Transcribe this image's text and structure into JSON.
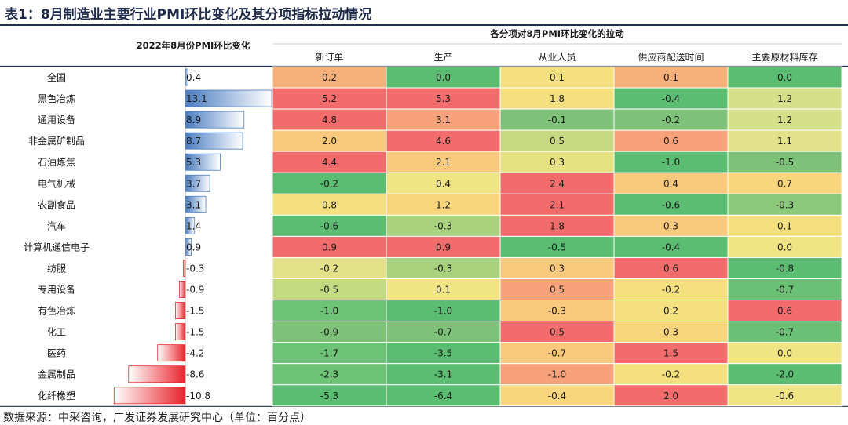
{
  "title": "表1：8月制造业主要行业PMI环比变化及其分项指标拉动情况",
  "source": "数据来源：中采咨询，广发证券发展研究中心（单位：百分点）",
  "chart_data": {
    "type": "table",
    "left_header": "2022年8月份PMI环比变化",
    "group_header": "各分项对8月PMI环比变化的拉动",
    "columns": [
      "新订单",
      "生产",
      "从业人员",
      "供应商配送时间",
      "主要原材料库存"
    ],
    "rows": [
      {
        "industry": "全国",
        "pmi_change": "0.4",
        "values": [
          "0.2",
          "0.0",
          "0.1",
          "0.1",
          "0.0"
        ]
      },
      {
        "industry": "黑色冶炼",
        "pmi_change": "13.1",
        "values": [
          "5.2",
          "5.3",
          "1.8",
          "-0.4",
          "1.2"
        ]
      },
      {
        "industry": "通用设备",
        "pmi_change": "8.9",
        "values": [
          "4.8",
          "3.1",
          "-0.1",
          "-0.2",
          "1.2"
        ]
      },
      {
        "industry": "非金属矿制品",
        "pmi_change": "8.7",
        "values": [
          "2.0",
          "4.6",
          "0.5",
          "0.6",
          "1.1"
        ]
      },
      {
        "industry": "石油炼焦",
        "pmi_change": "5.3",
        "values": [
          "4.4",
          "2.1",
          "0.3",
          "-1.0",
          "-0.5"
        ]
      },
      {
        "industry": "电气机械",
        "pmi_change": "3.7",
        "values": [
          "-0.2",
          "0.4",
          "2.4",
          "0.4",
          "0.7"
        ]
      },
      {
        "industry": "农副食品",
        "pmi_change": "3.1",
        "values": [
          "0.8",
          "1.2",
          "2.1",
          "-0.6",
          "-0.3"
        ]
      },
      {
        "industry": "汽车",
        "pmi_change": "1.4",
        "values": [
          "-0.6",
          "-0.3",
          "1.8",
          "0.3",
          "0.1"
        ]
      },
      {
        "industry": "计算机通信电子",
        "pmi_change": "0.9",
        "values": [
          "0.9",
          "0.9",
          "-0.5",
          "-0.4",
          "0.0"
        ]
      },
      {
        "industry": "纺服",
        "pmi_change": "-0.3",
        "values": [
          "-0.2",
          "-0.3",
          "0.3",
          "0.6",
          "-0.8"
        ]
      },
      {
        "industry": "专用设备",
        "pmi_change": "-0.9",
        "values": [
          "-0.5",
          "0.1",
          "0.5",
          "-0.2",
          "-0.7"
        ]
      },
      {
        "industry": "有色冶炼",
        "pmi_change": "-1.5",
        "values": [
          "-1.0",
          "-1.0",
          "-0.3",
          "0.2",
          "0.6"
        ]
      },
      {
        "industry": "化工",
        "pmi_change": "-1.5",
        "values": [
          "-0.9",
          "-0.7",
          "0.5",
          "0.3",
          "-0.7"
        ]
      },
      {
        "industry": "医药",
        "pmi_change": "-4.2",
        "values": [
          "-1.7",
          "-3.5",
          "-0.7",
          "1.5",
          "0.0"
        ]
      },
      {
        "industry": "金属制品",
        "pmi_change": "-8.6",
        "values": [
          "-2.3",
          "-3.1",
          "-1.0",
          "-0.2",
          "-2.0"
        ]
      },
      {
        "industry": "化纤橡塑",
        "pmi_change": "-10.8",
        "values": [
          "-5.3",
          "-6.4",
          "-0.4",
          "2.0",
          "-0.6"
        ]
      }
    ],
    "cell_colors": [
      [
        "#f7b07a",
        "#5bbd71",
        "#f5e080",
        "#f7b07a",
        "#5bbd71"
      ],
      [
        "#f26c6c",
        "#f26c6c",
        "#f5e080",
        "#5bbd71",
        "#d6e08a"
      ],
      [
        "#f26c6c",
        "#f7a27a",
        "#7dc278",
        "#7dc278",
        "#d6e08a"
      ],
      [
        "#f9c97e",
        "#f26c6c",
        "#c7d880",
        "#f7a27a",
        "#e3e28a"
      ],
      [
        "#f26c6c",
        "#f9c97e",
        "#e6e284",
        "#5bbd71",
        "#7dc278"
      ],
      [
        "#5bbd71",
        "#f0e484",
        "#f26c6c",
        "#f9c97e",
        "#f9d67e"
      ],
      [
        "#f5e080",
        "#f9d67e",
        "#f26c6c",
        "#5bbd71",
        "#8bc87a"
      ],
      [
        "#5bbd71",
        "#a8d27e",
        "#f26c6c",
        "#f9c97e",
        "#f5e080"
      ],
      [
        "#f26c6c",
        "#f26c6c",
        "#5bbd71",
        "#5bbd71",
        "#f0e484"
      ],
      [
        "#e3e288",
        "#a8d27e",
        "#f9c97e",
        "#f26c6c",
        "#5bbd71"
      ],
      [
        "#c4da80",
        "#f0e484",
        "#f7a27a",
        "#f5e080",
        "#6ac075"
      ],
      [
        "#6ec476",
        "#5bbd71",
        "#f9c97e",
        "#f5e080",
        "#f26c6c"
      ],
      [
        "#7dc278",
        "#7dc278",
        "#f26c6c",
        "#f9d67e",
        "#6ac075"
      ],
      [
        "#6ec476",
        "#5bbd71",
        "#f9c97e",
        "#f26c6c",
        "#f0e484"
      ],
      [
        "#6ec476",
        "#5bbd71",
        "#f7a27a",
        "#f5e080",
        "#5bbd71"
      ],
      [
        "#5bbd71",
        "#5bbd71",
        "#f9d67e",
        "#f26c6c",
        "#f0e484"
      ]
    ],
    "bar_colors": {
      "positive": "#4a7cc0",
      "negative": "#e8232b"
    }
  }
}
